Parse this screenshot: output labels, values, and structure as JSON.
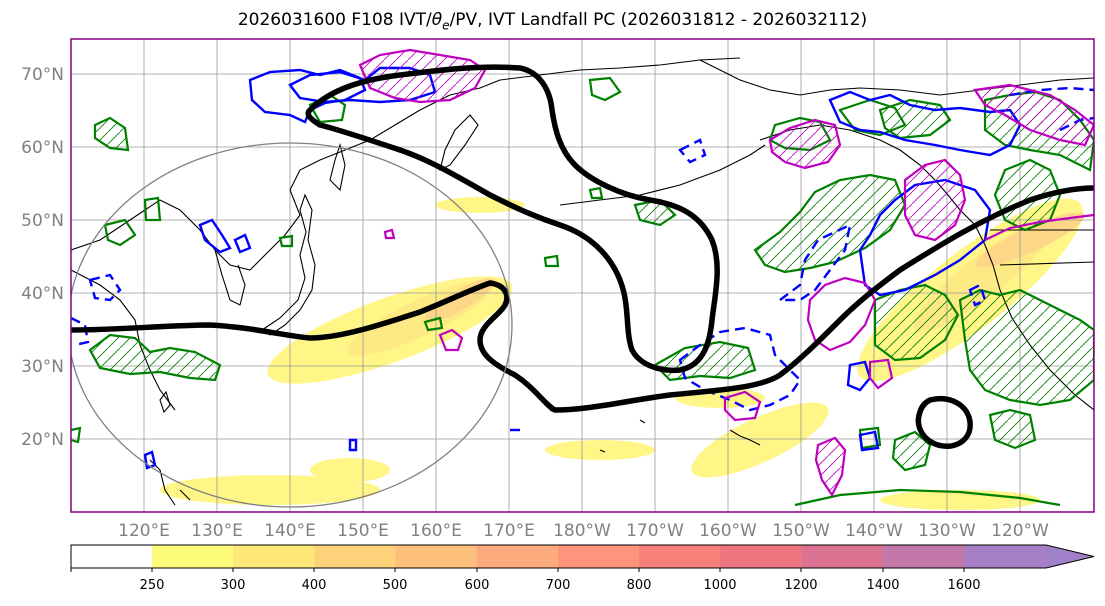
{
  "title": "2026031600 F108 IVT/θe/PV, IVT Landfall PC (2026031812 - 2026032112)",
  "title_parts": {
    "prefix": "2026031600 F108 IVT/",
    "theta": "θ",
    "sub_e": "e",
    "suffix": "/PV, IVT Landfall PC (2026031812 - 2026032112)"
  },
  "lat_labels": [
    "70°N",
    "60°N",
    "50°N",
    "40°N",
    "30°N",
    "20°N"
  ],
  "lon_labels": [
    "120°E",
    "130°E",
    "140°E",
    "150°E",
    "160°E",
    "170°E",
    "180°W",
    "170°W",
    "160°W",
    "150°W",
    "140°W",
    "130°W",
    "120°W"
  ],
  "colorbar": {
    "ticks": [
      "250",
      "300",
      "400",
      "500",
      "600",
      "700",
      "800",
      "1000",
      "1200",
      "1400",
      "1600"
    ],
    "colors": [
      "#fdfb7a",
      "#fde878",
      "#fdd27a",
      "#fdbf7c",
      "#fdaa7c",
      "#fd947b",
      "#f7817a",
      "#ee7480",
      "#dc7392",
      "#c278a8",
      "#a67fc4",
      "#a080c8"
    ]
  },
  "colors": {
    "ivt_fill": "#fff27a",
    "pv_contour": "#0000ff",
    "theta_contour": "#008000",
    "third_contour": "#c000c0",
    "landfall_pc": "#000000",
    "coast": "#000000",
    "grid": "#999999"
  }
}
